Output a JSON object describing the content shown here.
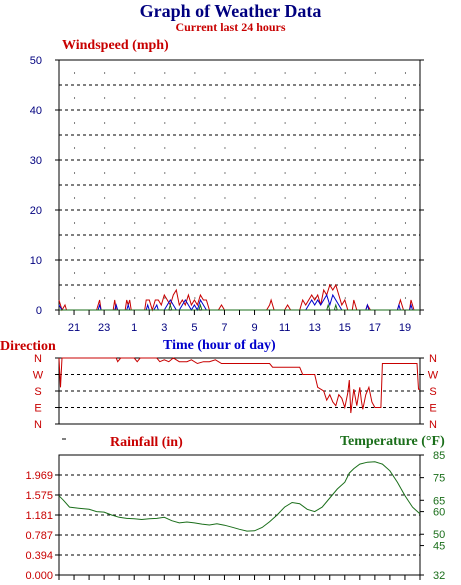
{
  "header": {
    "title": "Graph of Weather Data",
    "subtitle": "Current last 24 hours"
  },
  "colors": {
    "navy": "#00007f",
    "red": "#c80000",
    "blue": "#0000cc",
    "green": "#1a6e1a",
    "grid": "#000000"
  },
  "chart_data": [
    {
      "type": "line",
      "name": "windspeed",
      "title": "",
      "ylabel": "Windspeed (mph)",
      "xlabel": "Time (hour of day)",
      "ylim": [
        0,
        50
      ],
      "yticks": [
        "50",
        "40",
        "30",
        "20",
        "10",
        "0"
      ],
      "x_ticks": [
        "21",
        "23",
        "1",
        "3",
        "5",
        "7",
        "9",
        "11",
        "13",
        "15",
        "17",
        "19"
      ],
      "x_domain_hours": [
        20,
        44
      ],
      "grid": true,
      "series": [
        {
          "color": "#c80000",
          "points": [
            [
              20.0,
              2
            ],
            [
              20.2,
              0
            ],
            [
              20.4,
              1
            ],
            [
              20.5,
              0
            ],
            [
              22.5,
              0
            ],
            [
              22.7,
              2
            ],
            [
              22.8,
              0
            ],
            [
              23.6,
              0
            ],
            [
              23.7,
              2
            ],
            [
              23.8,
              0
            ],
            [
              24.4,
              0
            ],
            [
              24.5,
              2
            ],
            [
              24.6,
              1
            ],
            [
              24.7,
              2
            ],
            [
              24.8,
              0
            ],
            [
              25.7,
              0
            ],
            [
              25.8,
              2
            ],
            [
              26.0,
              2
            ],
            [
              26.2,
              0
            ],
            [
              26.4,
              2
            ],
            [
              26.6,
              2
            ],
            [
              26.8,
              1
            ],
            [
              27.0,
              3
            ],
            [
              27.2,
              2
            ],
            [
              27.4,
              1
            ],
            [
              27.6,
              3
            ],
            [
              27.8,
              4
            ],
            [
              28.0,
              1
            ],
            [
              28.2,
              2
            ],
            [
              28.4,
              1
            ],
            [
              28.6,
              3
            ],
            [
              28.8,
              1
            ],
            [
              29.0,
              2
            ],
            [
              29.2,
              1
            ],
            [
              29.4,
              3
            ],
            [
              29.6,
              2
            ],
            [
              29.8,
              2
            ],
            [
              30.0,
              0
            ],
            [
              30.6,
              0
            ],
            [
              30.8,
              1
            ],
            [
              31.0,
              0
            ],
            [
              33.8,
              0
            ],
            [
              34.0,
              1
            ],
            [
              34.1,
              2
            ],
            [
              34.3,
              0
            ],
            [
              35.0,
              0
            ],
            [
              35.2,
              1
            ],
            [
              35.4,
              0
            ],
            [
              36.0,
              0
            ],
            [
              36.2,
              2
            ],
            [
              36.4,
              1
            ],
            [
              36.6,
              2
            ],
            [
              36.8,
              3
            ],
            [
              37.0,
              2
            ],
            [
              37.2,
              3
            ],
            [
              37.4,
              1
            ],
            [
              37.6,
              4
            ],
            [
              37.8,
              3
            ],
            [
              38.0,
              5
            ],
            [
              38.2,
              4
            ],
            [
              38.4,
              5
            ],
            [
              38.6,
              3
            ],
            [
              38.8,
              1
            ],
            [
              39.0,
              2
            ],
            [
              39.2,
              0
            ],
            [
              39.5,
              0
            ],
            [
              39.6,
              2
            ],
            [
              39.8,
              0
            ],
            [
              40.4,
              0
            ],
            [
              40.5,
              1
            ],
            [
              40.7,
              0
            ],
            [
              42.5,
              0
            ],
            [
              42.7,
              2
            ],
            [
              42.9,
              0
            ],
            [
              43.3,
              0
            ],
            [
              43.4,
              2
            ],
            [
              43.6,
              0
            ],
            [
              44.0,
              0
            ]
          ]
        },
        {
          "color": "#0000cc",
          "points": [
            [
              20.0,
              1
            ],
            [
              20.2,
              0
            ],
            [
              22.6,
              0
            ],
            [
              22.7,
              1
            ],
            [
              22.8,
              0
            ],
            [
              23.7,
              0
            ],
            [
              23.8,
              1
            ],
            [
              23.9,
              0
            ],
            [
              24.5,
              0
            ],
            [
              24.6,
              1
            ],
            [
              24.7,
              0
            ],
            [
              25.8,
              0
            ],
            [
              25.9,
              1
            ],
            [
              26.0,
              0
            ],
            [
              26.3,
              0
            ],
            [
              26.5,
              1
            ],
            [
              26.6,
              0
            ],
            [
              27.0,
              0
            ],
            [
              27.2,
              1
            ],
            [
              27.4,
              2
            ],
            [
              27.6,
              1
            ],
            [
              27.8,
              0
            ],
            [
              28.0,
              0
            ],
            [
              28.2,
              1
            ],
            [
              28.4,
              2
            ],
            [
              28.6,
              1
            ],
            [
              28.8,
              0
            ],
            [
              29.0,
              1
            ],
            [
              29.2,
              0
            ],
            [
              29.4,
              2
            ],
            [
              29.6,
              1
            ],
            [
              29.8,
              0
            ],
            [
              30.1,
              0
            ],
            [
              36.4,
              0
            ],
            [
              36.6,
              1
            ],
            [
              36.8,
              2
            ],
            [
              37.0,
              1
            ],
            [
              37.2,
              2
            ],
            [
              37.4,
              1
            ],
            [
              37.6,
              2
            ],
            [
              37.8,
              3
            ],
            [
              38.0,
              1
            ],
            [
              38.2,
              3
            ],
            [
              38.4,
              2
            ],
            [
              38.6,
              1
            ],
            [
              38.8,
              0
            ],
            [
              40.4,
              0
            ],
            [
              40.5,
              1
            ],
            [
              40.6,
              0
            ],
            [
              42.5,
              0
            ],
            [
              42.6,
              1
            ],
            [
              42.7,
              0
            ],
            [
              43.3,
              0
            ],
            [
              43.4,
              1
            ],
            [
              43.5,
              0
            ],
            [
              44.0,
              0
            ]
          ]
        },
        {
          "color": "#1a6e1a",
          "points": [
            [
              20.0,
              0
            ],
            [
              27.3,
              0
            ],
            [
              27.4,
              1
            ],
            [
              27.5,
              0
            ],
            [
              29.3,
              0
            ],
            [
              29.4,
              1
            ],
            [
              29.5,
              0
            ],
            [
              37.8,
              0
            ],
            [
              37.9,
              1
            ],
            [
              38.0,
              0
            ],
            [
              38.3,
              0
            ],
            [
              38.4,
              1
            ],
            [
              38.5,
              0
            ],
            [
              44.0,
              0
            ]
          ]
        }
      ]
    },
    {
      "type": "line",
      "name": "direction",
      "title": "",
      "ylabel": "Direction",
      "categories": [
        "N",
        "W",
        "S",
        "E",
        "N"
      ],
      "ylim": [
        0,
        360
      ],
      "x_domain_hours": [
        20,
        44
      ],
      "series": [
        {
          "color": "#c80000",
          "points": [
            [
              20.0,
              360
            ],
            [
              20.1,
              200
            ],
            [
              20.2,
              360
            ],
            [
              23.8,
              360
            ],
            [
              23.9,
              340
            ],
            [
              24.1,
              360
            ],
            [
              25.0,
              360
            ],
            [
              25.2,
              340
            ],
            [
              25.4,
              360
            ],
            [
              26.5,
              360
            ],
            [
              26.7,
              340
            ],
            [
              27.0,
              350
            ],
            [
              27.3,
              340
            ],
            [
              27.6,
              360
            ],
            [
              28.0,
              340
            ],
            [
              28.5,
              340
            ],
            [
              28.8,
              350
            ],
            [
              29.2,
              330
            ],
            [
              29.6,
              340
            ],
            [
              30.0,
              340
            ],
            [
              30.4,
              350
            ],
            [
              30.8,
              330
            ],
            [
              31.0,
              330
            ],
            [
              34.0,
              330
            ],
            [
              34.2,
              310
            ],
            [
              36.0,
              310
            ],
            [
              36.2,
              270
            ],
            [
              37.0,
              270
            ],
            [
              37.2,
              200
            ],
            [
              37.6,
              180
            ],
            [
              37.8,
              130
            ],
            [
              38.0,
              160
            ],
            [
              38.2,
              120
            ],
            [
              38.4,
              100
            ],
            [
              38.6,
              160
            ],
            [
              38.8,
              140
            ],
            [
              39.0,
              90
            ],
            [
              39.2,
              170
            ],
            [
              39.3,
              240
            ],
            [
              39.4,
              60
            ],
            [
              39.6,
              190
            ],
            [
              39.8,
              100
            ],
            [
              40.0,
              200
            ],
            [
              40.1,
              130
            ],
            [
              40.2,
              80
            ],
            [
              40.4,
              160
            ],
            [
              40.6,
              200
            ],
            [
              40.8,
              120
            ],
            [
              41.0,
              90
            ],
            [
              41.4,
              90
            ],
            [
              41.5,
              330
            ],
            [
              42.0,
              330
            ],
            [
              43.8,
              330
            ],
            [
              43.9,
              190
            ],
            [
              44.0,
              190
            ]
          ]
        }
      ]
    },
    {
      "type": "line",
      "name": "rainfall_temperature",
      "title": "",
      "ylabel": "Rainfall (in)",
      "ylabel_right": "Temperature (°F)",
      "yticks_left": [
        "1.969",
        "1.575",
        "1.181",
        "0.787",
        "0.394",
        "0.000"
      ],
      "yticks_right": [
        "85",
        "75",
        "65",
        "60",
        "50",
        "45",
        "32"
      ],
      "ylim_rain": [
        0,
        2.362
      ],
      "ylim_temp": [
        32,
        85
      ],
      "x_domain_hours": [
        20,
        44
      ],
      "series": [
        {
          "color": "#1a6e1a",
          "axis": "right",
          "points": [
            [
              20.0,
              67
            ],
            [
              20.3,
              65
            ],
            [
              20.7,
              62
            ],
            [
              21.3,
              61.5
            ],
            [
              22.0,
              61
            ],
            [
              22.5,
              60
            ],
            [
              23.0,
              59.8
            ],
            [
              23.5,
              58.5
            ],
            [
              24.0,
              57.5
            ],
            [
              24.5,
              57
            ],
            [
              25.0,
              56.8
            ],
            [
              25.5,
              56.5
            ],
            [
              26.0,
              56.8
            ],
            [
              26.5,
              57
            ],
            [
              27.0,
              57.5
            ],
            [
              27.5,
              56
            ],
            [
              28.0,
              55
            ],
            [
              28.5,
              55.4
            ],
            [
              29.0,
              55
            ],
            [
              29.5,
              54.5
            ],
            [
              30.0,
              54.1
            ],
            [
              30.5,
              54.6
            ],
            [
              31.0,
              54
            ],
            [
              31.5,
              53.1
            ],
            [
              32.0,
              52.2
            ],
            [
              32.5,
              51.4
            ],
            [
              33.0,
              51.5
            ],
            [
              33.5,
              53
            ],
            [
              34.0,
              55.5
            ],
            [
              34.5,
              58.5
            ],
            [
              35.0,
              62
            ],
            [
              35.5,
              64
            ],
            [
              36.0,
              63.5
            ],
            [
              36.5,
              61
            ],
            [
              37.0,
              60
            ],
            [
              37.5,
              62
            ],
            [
              38.0,
              66
            ],
            [
              38.5,
              70
            ],
            [
              39.0,
              73
            ],
            [
              39.3,
              77
            ],
            [
              39.6,
              79
            ],
            [
              40.0,
              81
            ],
            [
              40.5,
              81.8
            ],
            [
              41.0,
              82
            ],
            [
              41.5,
              81
            ],
            [
              42.0,
              78
            ],
            [
              42.5,
              73
            ],
            [
              43.0,
              67
            ],
            [
              43.5,
              62
            ],
            [
              44.0,
              59
            ]
          ]
        }
      ]
    }
  ]
}
